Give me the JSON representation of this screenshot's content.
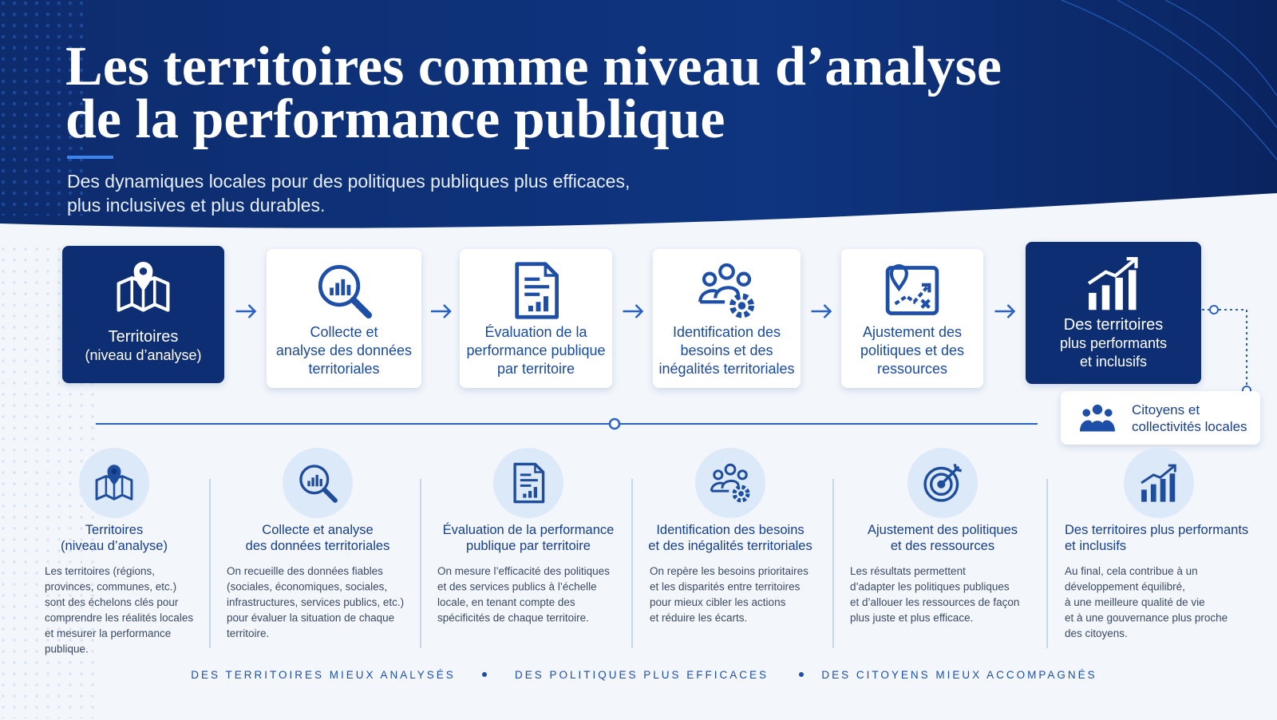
{
  "header": {
    "title_lines": [
      "Les territoires comme niveau d’analyse",
      "de la performance publique"
    ],
    "subtitle_lines": [
      "Des dynamiques locales pour des politiques publiques plus efficaces,",
      "plus inclusives et plus durables."
    ]
  },
  "flow": {
    "steps": [
      {
        "lines": [
          "Territoires",
          "(niveau d’analyse)"
        ]
      },
      {
        "lines": [
          "Collecte et",
          "analyse des données",
          "territoriales"
        ]
      },
      {
        "lines": [
          "Évaluation de la",
          "performance publique",
          "par territoire"
        ]
      },
      {
        "lines": [
          "Identification des",
          "besoins et des",
          "inégalités territoriales"
        ]
      },
      {
        "lines": [
          "Ajustement des",
          "politiques et des",
          "ressources"
        ]
      },
      {
        "lines": [
          "Des territoires",
          "plus performants",
          "et inclusifs"
        ]
      }
    ],
    "side_box": {
      "lines": [
        "Citoyens et",
        "collectivités locales"
      ]
    }
  },
  "details": [
    {
      "title_lines": [
        "Territoires",
        "(niveau d’analyse)"
      ],
      "text_lines": [
        "Les territoires (régions,",
        "provinces, communes, etc.)",
        "sont des échelons clés pour",
        "comprendre les réalités locales",
        "et mesurer la performance",
        "publique."
      ]
    },
    {
      "title_lines": [
        "Collecte et analyse",
        "des données territoriales"
      ],
      "text_lines": [
        "On recueille des données fiables",
        "(sociales, économiques, sociales,",
        "infrastructures, services publics, etc.)",
        "pour évaluer la situation de chaque",
        "territoire."
      ]
    },
    {
      "title_lines": [
        "Évaluation de la performance",
        "publique par territoire"
      ],
      "text_lines": [
        "On mesure l’efficacité des politiques",
        "et des services publics à l’échelle",
        "locale, en tenant compte des",
        "spécificités de chaque territoire."
      ]
    },
    {
      "title_lines": [
        "Identification des besoins",
        "et des inégalités territoriales"
      ],
      "text_lines": [
        "On repère les besoins prioritaires",
        "et les disparités entre territoires",
        "pour mieux cibler les actions",
        "et réduire les écarts."
      ]
    },
    {
      "title_lines": [
        "Ajustement des politiques",
        "et des ressources"
      ],
      "text_lines": [
        "Les résultats permettent",
        "d’adapter les politiques publiques",
        "et d’allouer les ressources de façon",
        "plus juste et plus efficace."
      ]
    },
    {
      "title_lines": [
        "Des territoires plus performants",
        "et inclusifs"
      ],
      "text_lines": [
        "Au final, cela contribue à un",
        "développement équilibré,",
        "à une meilleure qualité de vie",
        "et à une gouvernance plus proche",
        "des citoyens."
      ]
    }
  ],
  "footer": {
    "taglines": [
      "DES TERRITOIRES MIEUX ANALYSÉS",
      "DES POLITIQUES PLUS EFFICACES",
      "DES CITOYENS MIEUX ACCOMPAGNÉS"
    ]
  }
}
